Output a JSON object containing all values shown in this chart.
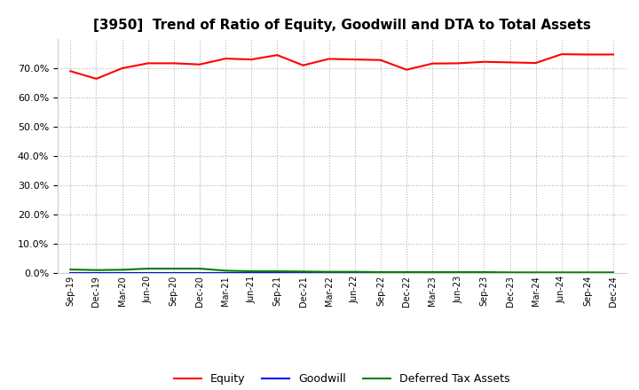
{
  "title": "[3950]  Trend of Ratio of Equity, Goodwill and DTA to Total Assets",
  "x_labels": [
    "Sep-19",
    "Dec-19",
    "Mar-20",
    "Jun-20",
    "Sep-20",
    "Dec-20",
    "Mar-21",
    "Jun-21",
    "Sep-21",
    "Dec-21",
    "Mar-22",
    "Jun-22",
    "Sep-22",
    "Dec-22",
    "Mar-23",
    "Jun-23",
    "Sep-23",
    "Dec-23",
    "Mar-24",
    "Jun-24",
    "Sep-24",
    "Dec-24"
  ],
  "equity": [
    0.69,
    0.664,
    0.7,
    0.717,
    0.717,
    0.713,
    0.733,
    0.73,
    0.745,
    0.71,
    0.732,
    0.73,
    0.728,
    0.695,
    0.716,
    0.717,
    0.722,
    0.72,
    0.718,
    0.748,
    0.747,
    0.747
  ],
  "goodwill": [
    0.0,
    0.0,
    0.0,
    0.0,
    0.0,
    0.0,
    0.0,
    0.0,
    0.0,
    0.0,
    0.0,
    0.0,
    0.0,
    0.0,
    0.0,
    0.0,
    0.0,
    0.0,
    0.0,
    0.0,
    0.0,
    0.0
  ],
  "dta": [
    0.012,
    0.01,
    0.011,
    0.015,
    0.015,
    0.015,
    0.008,
    0.006,
    0.006,
    0.005,
    0.004,
    0.004,
    0.003,
    0.003,
    0.003,
    0.003,
    0.003,
    0.002,
    0.002,
    0.002,
    0.002,
    0.002
  ],
  "equity_color": "#ff0000",
  "goodwill_color": "#0000ff",
  "dta_color": "#008000",
  "background_color": "#ffffff",
  "grid_color": "#aaaaaa",
  "ylim": [
    0.0,
    0.8
  ],
  "yticks": [
    0.0,
    0.1,
    0.2,
    0.3,
    0.4,
    0.5,
    0.6,
    0.7
  ],
  "title_fontsize": 11,
  "legend_labels": [
    "Equity",
    "Goodwill",
    "Deferred Tax Assets"
  ]
}
